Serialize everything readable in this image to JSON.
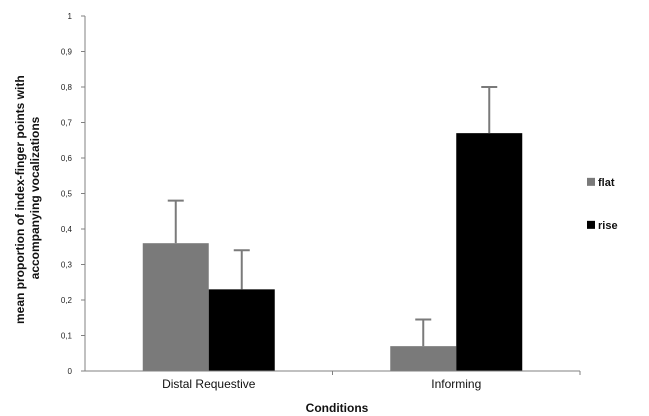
{
  "chart_data": {
    "type": "bar",
    "categories": [
      "Distal Requestive",
      "Informing"
    ],
    "series": [
      {
        "name": "flat",
        "values": [
          0.36,
          0.07
        ],
        "errors": [
          0.12,
          0.075
        ],
        "color": "#7a7a7a"
      },
      {
        "name": "rise",
        "values": [
          0.23,
          0.67
        ],
        "errors": [
          0.11,
          0.13
        ],
        "color": "#000000"
      }
    ],
    "xlabel": "Conditions",
    "ylabel": "mean proportion of index-finger points with accompanying vocalizations",
    "ylabel_lines": [
      "mean proportion of index-finger points with",
      "accompanying vocalizations"
    ],
    "ylim": [
      0,
      1
    ],
    "yticks": [
      "0",
      "0,1",
      "0,2",
      "0,3",
      "0,4",
      "0,5",
      "0,6",
      "0,7",
      "0,8",
      "0,9",
      "1"
    ],
    "grid": false,
    "legend_position": "right",
    "error_bar_color": "#7a7a7a"
  }
}
